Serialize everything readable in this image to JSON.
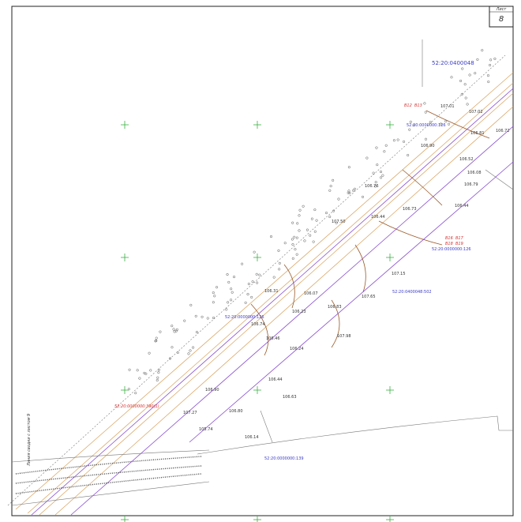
{
  "sheet": {
    "label": "Лист",
    "number": "8"
  },
  "parcels": [
    "52:20:0400048",
    "52:20:0000000:126",
    "52:20:0000000:126",
    "52:20:0000000:126",
    "52:20:0400048:502",
    "52:20:0000000:139",
    "52:20:0000000:390(1)"
  ],
  "match_line": "Линия сводки с листом 9",
  "elevations": [
    "107.01",
    "107.02",
    "106.72",
    "106.81",
    "106.90",
    "106.52",
    "106.08",
    "106.79",
    "106.44",
    "106.76",
    "106.73",
    "107.50",
    "106.44",
    "107.15",
    "106.31",
    "106.07",
    "106.83",
    "107.65",
    "106.23",
    "106.74",
    "107.98",
    "106.46",
    "106.24",
    "106.44",
    "106.63",
    "106.90",
    "106.80",
    "106.14",
    "107.27",
    "105.74"
  ],
  "markers": [
    "B12",
    "B13",
    "B16",
    "B17",
    "B18",
    "B19"
  ]
}
